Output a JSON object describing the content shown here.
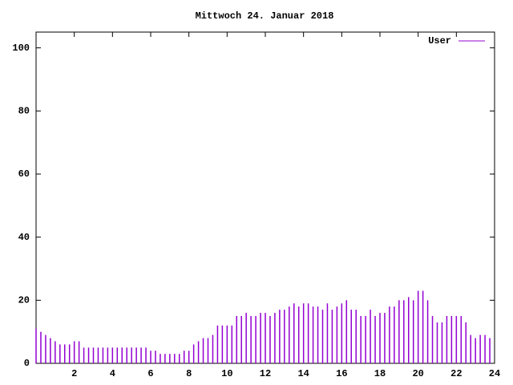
{
  "chart_data": {
    "type": "impulse",
    "title": "Mittwoch 24. Januar 2018",
    "x": [
      0,
      0.25,
      0.5,
      0.75,
      1,
      1.25,
      1.5,
      1.75,
      2,
      2.25,
      2.5,
      2.75,
      3,
      3.25,
      3.5,
      3.75,
      4,
      4.25,
      4.5,
      4.75,
      5,
      5.25,
      5.5,
      5.75,
      6,
      6.25,
      6.5,
      6.75,
      7,
      7.25,
      7.5,
      7.75,
      8,
      8.25,
      8.5,
      8.75,
      9,
      9.25,
      9.5,
      9.75,
      10,
      10.25,
      10.5,
      10.75,
      11,
      11.25,
      11.5,
      11.75,
      12,
      12.25,
      12.5,
      12.75,
      13,
      13.25,
      13.5,
      13.75,
      14,
      14.25,
      14.5,
      14.75,
      15,
      15.25,
      15.5,
      15.75,
      16,
      16.25,
      16.5,
      16.75,
      17,
      17.25,
      17.5,
      17.75,
      18,
      18.25,
      18.5,
      18.75,
      19,
      19.25,
      19.5,
      19.75,
      20,
      20.25,
      20.5,
      20.75,
      21,
      21.25,
      21.5,
      21.75,
      22,
      22.25,
      22.5,
      22.75,
      23,
      23.25,
      23.5,
      23.75
    ],
    "series": [
      {
        "name": "User",
        "color": "#9400d3",
        "values": [
          11,
          10,
          9,
          8,
          7,
          6,
          6,
          6,
          7,
          7,
          5,
          5,
          5,
          5,
          5,
          5,
          5,
          5,
          5,
          5,
          5,
          5,
          5,
          5,
          4,
          4,
          3,
          3,
          3,
          3,
          3,
          4,
          4,
          6,
          7,
          8,
          8,
          9,
          12,
          12,
          12,
          12,
          15,
          15,
          16,
          15,
          15,
          16,
          16,
          15,
          16,
          17,
          17,
          18,
          19,
          18,
          19,
          19,
          18,
          18,
          17,
          19,
          17,
          18,
          19,
          20,
          17,
          17,
          15,
          15,
          17,
          15,
          16,
          16,
          18,
          18,
          20,
          20,
          21,
          20,
          23,
          23,
          20,
          15,
          13,
          13,
          15,
          15,
          15,
          15,
          13,
          9,
          8,
          9,
          9,
          8
        ]
      }
    ],
    "xlim": [
      0,
      24
    ],
    "xticks": [
      2,
      4,
      6,
      8,
      10,
      12,
      14,
      16,
      18,
      20,
      22,
      24
    ],
    "ylim": [
      0,
      105
    ],
    "yticks": [
      0,
      20,
      40,
      60,
      80,
      100
    ],
    "legend": "upper right"
  }
}
